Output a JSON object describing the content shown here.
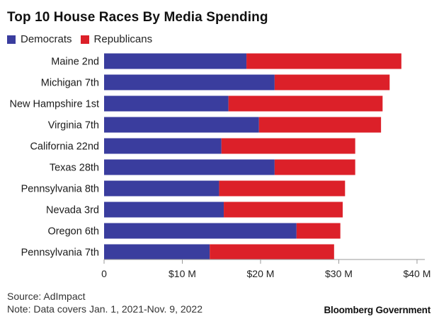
{
  "title": "Top 10 House Races By Media Spending",
  "legend": {
    "dem_label": "Democrats",
    "rep_label": "Republicans"
  },
  "colors": {
    "democrats": "#3a3d9e",
    "republicans": "#dc2029"
  },
  "source": "Source: AdImpact",
  "note": "Note: Data covers Jan. 1, 2021-Nov. 9, 2022",
  "brand": "Bloomberg Government",
  "chart_data": {
    "type": "bar",
    "orientation": "horizontal",
    "stacked": true,
    "title": "Top 10 House Races By Media Spending",
    "categories": [
      "Maine 2nd",
      "Michigan 7th",
      "New Hampshire 1st",
      "Virginia 7th",
      "California 22nd",
      "Texas 28th",
      "Pennsylvania 8th",
      "Nevada 3rd",
      "Oregon 6th",
      "Pennsylvania 7th"
    ],
    "series": [
      {
        "name": "Democrats",
        "values": [
          18.2,
          21.8,
          15.9,
          19.8,
          15.0,
          21.8,
          14.7,
          15.3,
          24.6,
          13.5
        ]
      },
      {
        "name": "Republicans",
        "values": [
          19.8,
          14.7,
          19.7,
          15.6,
          17.1,
          10.3,
          16.1,
          15.2,
          5.6,
          15.9
        ]
      }
    ],
    "xlim": [
      0,
      41
    ],
    "xticks": [
      0,
      10,
      20,
      30,
      40
    ],
    "xtick_labels": [
      "0",
      "$10 M",
      "$20 M",
      "$30 M",
      "$40 M"
    ],
    "legend_position": "top-left",
    "grid": false
  }
}
